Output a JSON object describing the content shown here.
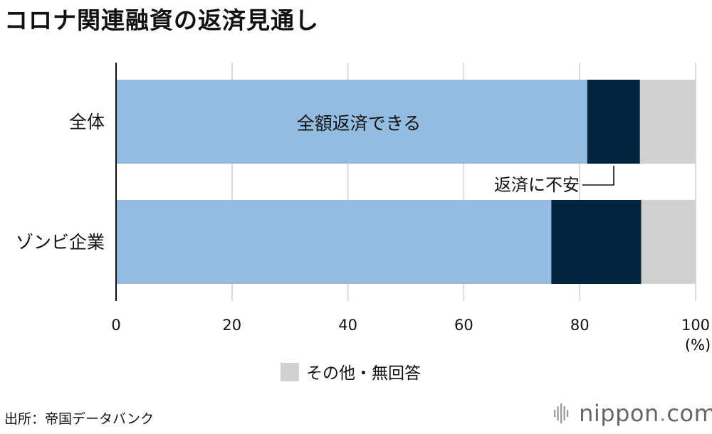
{
  "header": {
    "title": "コロナ関連融資の返済見通し"
  },
  "chart_data": {
    "type": "bar",
    "orientation": "horizontal",
    "stacked": true,
    "categories": [
      "全体",
      "ゾンビ企業"
    ],
    "series": [
      {
        "name": "全額返済できる",
        "values": [
          81.3,
          75.1
        ],
        "color": "#93bce0"
      },
      {
        "name": "返済に不安",
        "values": [
          9.1,
          15.5
        ],
        "color": "#03253f"
      },
      {
        "name": "その他・無回答",
        "values": [
          9.6,
          9.4
        ],
        "color": "#d0d0d0"
      }
    ],
    "xlim": [
      0,
      100
    ],
    "xticks": [
      0,
      20,
      40,
      60,
      80,
      100
    ],
    "x_unit": "(%)",
    "grid": true,
    "annotations": {
      "inside_label": "全額返済できる",
      "callout_label": "返済に不安"
    },
    "legend": {
      "label": "その他・無回答",
      "placement": "bottom-center"
    }
  },
  "footer": {
    "source": "出所：帝国データバンク",
    "brand_name": "nippon",
    "brand_dot": ".",
    "brand_tld": "com"
  }
}
